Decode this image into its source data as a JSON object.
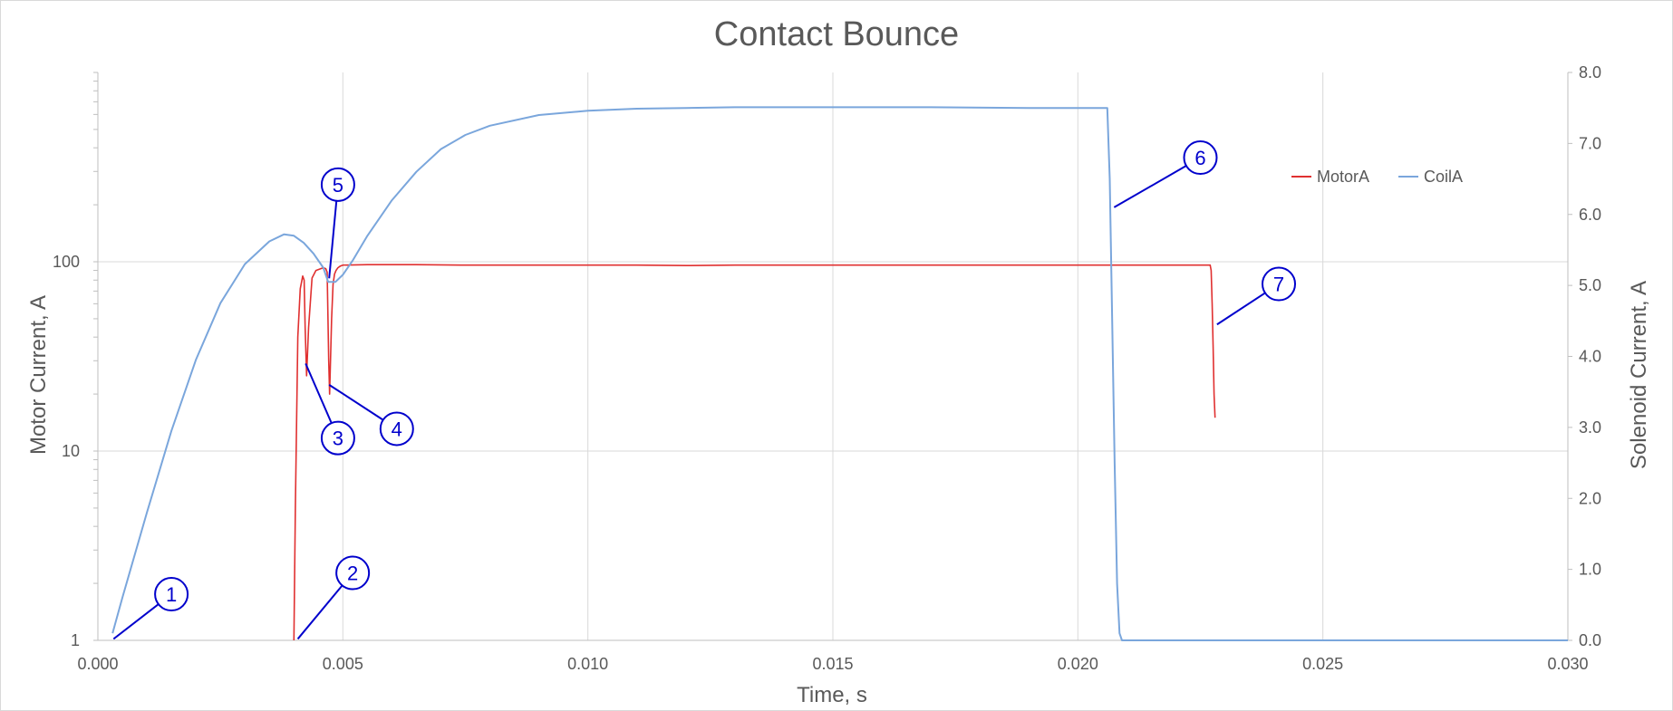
{
  "chart_data": {
    "type": "line",
    "title": "Contact Bounce",
    "xlabel": "Time, s",
    "ylabel": "Motor Current, A",
    "y2label": "Solenoid Current, A",
    "xlim": [
      0.0,
      0.03
    ],
    "ylim": [
      1,
      1000
    ],
    "yscale": "log",
    "y2lim": [
      0.0,
      8.0
    ],
    "grid": true,
    "legend_position": "right, inside plot area",
    "x_ticks": [
      "0.000",
      "0.005",
      "0.010",
      "0.015",
      "0.020",
      "0.025",
      "0.030"
    ],
    "y_ticks": [
      "1",
      "10",
      "100"
    ],
    "y2_ticks": [
      "0.0",
      "1.0",
      "2.0",
      "3.0",
      "4.0",
      "5.0",
      "6.0",
      "7.0",
      "8.0"
    ],
    "series": [
      {
        "name": "MotorA",
        "axis": "left",
        "color": "#e03030",
        "x": [
          0.004,
          0.00403,
          0.00408,
          0.00413,
          0.00418,
          0.00421,
          0.00423,
          0.00426,
          0.0043,
          0.00437,
          0.00445,
          0.0046,
          0.00465,
          0.00468,
          0.00471,
          0.00473,
          0.00477,
          0.0048,
          0.00483,
          0.00486,
          0.0049,
          0.00495,
          0.005,
          0.0055,
          0.0065,
          0.0075,
          0.009,
          0.01,
          0.011,
          0.012,
          0.013,
          0.014,
          0.015,
          0.016,
          0.017,
          0.018,
          0.019,
          0.02,
          0.021,
          0.022,
          0.0227,
          0.02272,
          0.02274,
          0.02276,
          0.02278,
          0.0228
        ],
        "y": [
          1.0,
          5.0,
          40.0,
          72.0,
          84.0,
          80.0,
          45.0,
          25.0,
          45.0,
          82.0,
          90.0,
          93.0,
          92.0,
          88.0,
          30.0,
          20.0,
          50.0,
          76.0,
          86.0,
          90.0,
          93.0,
          95.0,
          96.0,
          96.5,
          96.5,
          96.0,
          96.0,
          96.0,
          96.0,
          95.5,
          96.0,
          96.0,
          96.0,
          96.0,
          96.0,
          96.0,
          96.0,
          96.0,
          96.0,
          96.0,
          96.0,
          90.0,
          60.0,
          35.0,
          20.0,
          15.0
        ]
      },
      {
        "name": "CoilA",
        "axis": "right",
        "color": "#7aa6dc",
        "x": [
          0.0003,
          0.0005,
          0.001,
          0.0015,
          0.002,
          0.0025,
          0.003,
          0.0035,
          0.0038,
          0.004,
          0.0042,
          0.0044,
          0.0046,
          0.0047,
          0.00485,
          0.005,
          0.0052,
          0.0055,
          0.006,
          0.0065,
          0.007,
          0.0075,
          0.008,
          0.009,
          0.01,
          0.011,
          0.012,
          0.013,
          0.015,
          0.017,
          0.019,
          0.0206,
          0.02065,
          0.0207,
          0.02075,
          0.0208,
          0.02085,
          0.0209,
          0.0215,
          0.025,
          0.03
        ],
        "y": [
          0.1,
          0.6,
          1.8,
          2.95,
          3.95,
          4.75,
          5.3,
          5.62,
          5.72,
          5.7,
          5.6,
          5.45,
          5.25,
          5.05,
          5.05,
          5.15,
          5.35,
          5.7,
          6.2,
          6.6,
          6.92,
          7.12,
          7.25,
          7.4,
          7.46,
          7.49,
          7.5,
          7.51,
          7.51,
          7.51,
          7.5,
          7.5,
          6.5,
          4.5,
          2.5,
          0.8,
          0.1,
          0.0,
          0.0,
          0.0,
          0.0
        ]
      }
    ],
    "annotations": [
      {
        "label": "1",
        "x": 0.0015,
        "y2": 0.65
      },
      {
        "label": "2",
        "x": 0.0052,
        "y2": 0.95
      },
      {
        "label": "3",
        "x": 0.0049,
        "y2": 2.85
      },
      {
        "label": "4",
        "x": 0.0061,
        "y2": 2.98
      },
      {
        "label": "5",
        "x": 0.0049,
        "y2": 6.42
      },
      {
        "label": "6",
        "x": 0.0225,
        "y2": 6.8
      },
      {
        "label": "7",
        "x": 0.0241,
        "y2": 5.02
      }
    ]
  }
}
